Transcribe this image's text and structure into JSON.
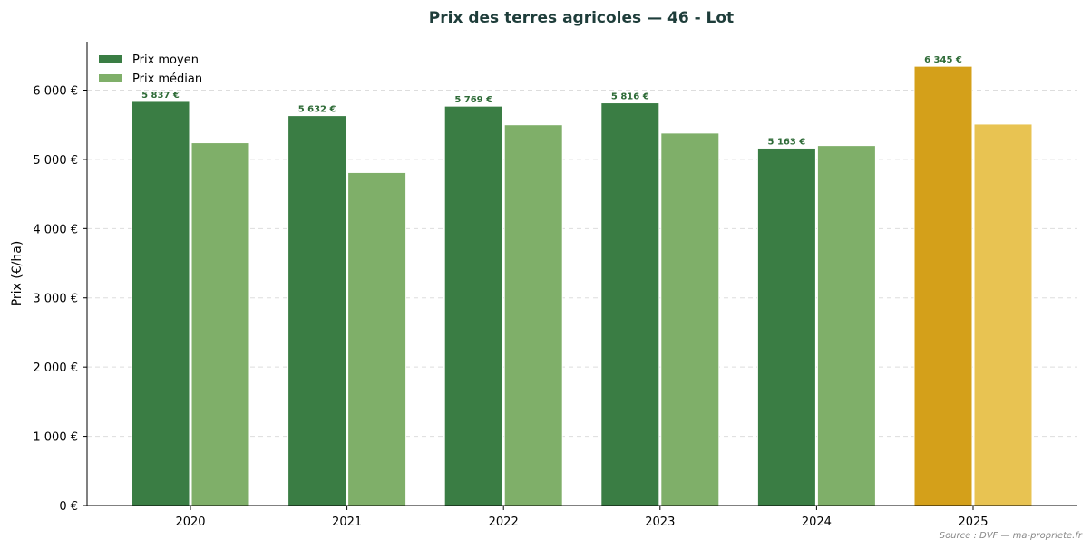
{
  "chart_data": {
    "type": "bar",
    "title": "Prix des terres agricoles — 46 - Lot",
    "ylabel": "Prix (€/ha)",
    "xlabel": "",
    "ylim": [
      0,
      6700
    ],
    "yticks": [
      0,
      1000,
      2000,
      3000,
      4000,
      5000,
      6000
    ],
    "ytick_labels": [
      "0 €",
      "1 000 €",
      "2 000 €",
      "3 000 €",
      "4 000 €",
      "5 000 €",
      "6 000 €"
    ],
    "categories": [
      "2020",
      "2021",
      "2022",
      "2023",
      "2024",
      "2025"
    ],
    "series": [
      {
        "name": "Prix moyen",
        "values": [
          5837,
          5632,
          5769,
          5816,
          5163,
          6345
        ],
        "data_labels": [
          "5 837 €",
          "5 632 €",
          "5 769 €",
          "5 816 €",
          "5 163 €",
          "6 345 €"
        ]
      },
      {
        "name": "Prix médian",
        "values": [
          5240,
          4810,
          5500,
          5380,
          5200,
          5510
        ]
      }
    ],
    "highlight_category": "2025",
    "grid": "y-dashed",
    "legend_position": "top-left",
    "source": "Source : DVF — ma-propriete.fr"
  },
  "colors": {
    "mean": "#3a7d44",
    "median": "#7faf69",
    "mean_highlight": "#d4a01a",
    "median_highlight": "#e8c352",
    "title": "#1e3d3a",
    "label": "#2e6b37",
    "label_highlight": "#2e6b37",
    "grid": "#dddddd"
  }
}
